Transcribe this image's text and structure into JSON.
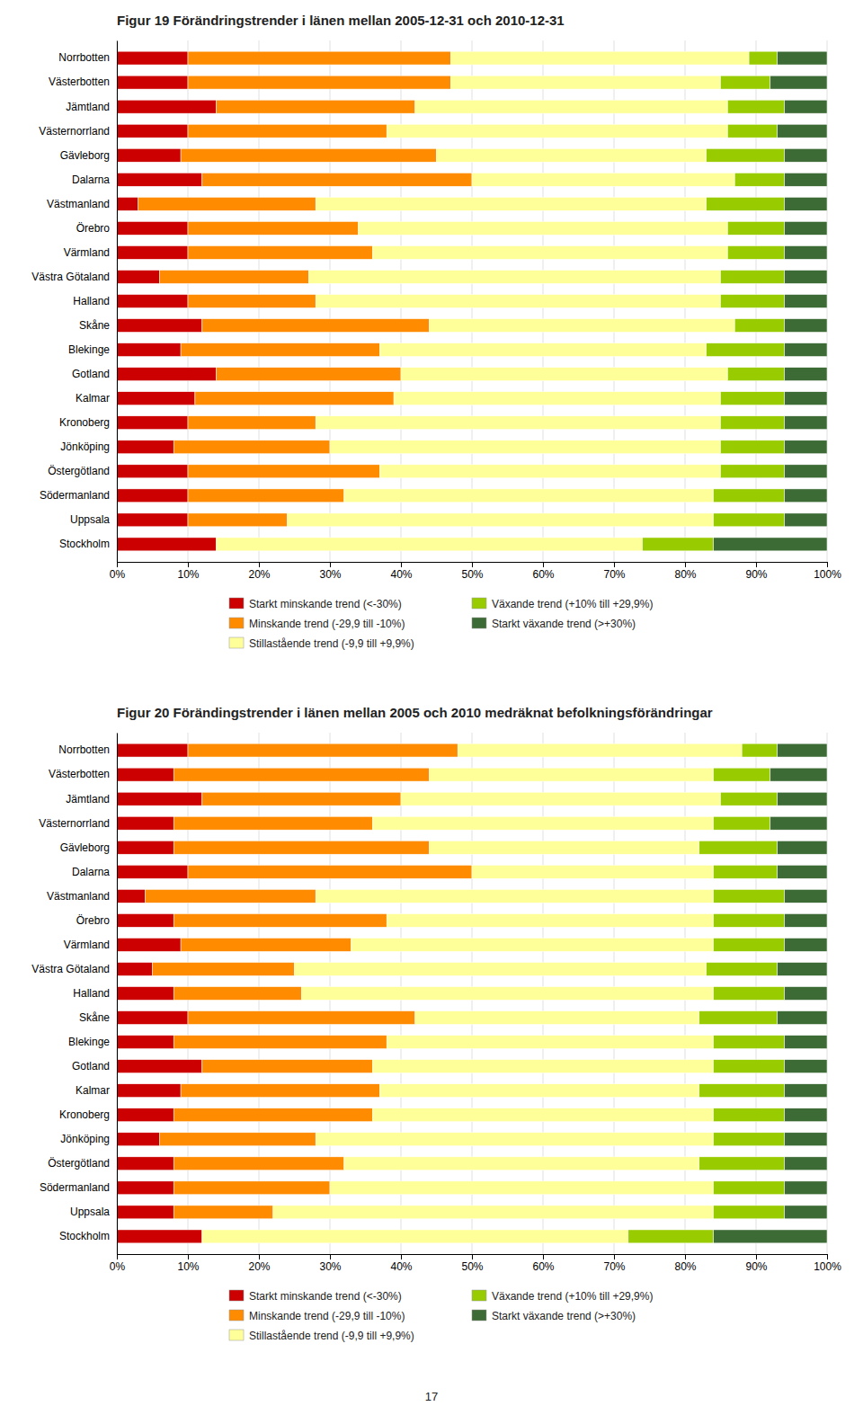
{
  "chart_data": [
    {
      "type": "bar",
      "title": "Figur 19 Förändringstrender i länen mellan 2005-12-31 och 2010-12-31",
      "orientation": "horizontal",
      "stacked": true,
      "grid": true,
      "legend": "bottom",
      "categories": [
        "Norrbotten",
        "Västerbotten",
        "Jämtland",
        "Västernorrland",
        "Gävleborg",
        "Dalarna",
        "Västmanland",
        "Örebro",
        "Värmland",
        "Västra Götaland",
        "Halland",
        "Skåne",
        "Blekinge",
        "Gotland",
        "Kalmar",
        "Kronoberg",
        "Jönköping",
        "Östergötland",
        "Södermanland",
        "Uppsala",
        "Stockholm"
      ],
      "series": [
        {
          "name": "Starkt minskande trend (<-30%)",
          "color": "#cc0000",
          "values": [
            10,
            10,
            14,
            10,
            9,
            12,
            3,
            10,
            10,
            6,
            10,
            12,
            9,
            14,
            11,
            10,
            8,
            10,
            10,
            10,
            14
          ]
        },
        {
          "name": "Minskande trend (-29,9 till -10%)",
          "color": "#ff8c00",
          "values": [
            37,
            37,
            28,
            28,
            36,
            38,
            25,
            24,
            26,
            21,
            18,
            32,
            28,
            26,
            28,
            18,
            22,
            27,
            22,
            14,
            0
          ]
        },
        {
          "name": "Stillastående trend (-9,9 till +9,9%)",
          "color": "#ffff99",
          "values": [
            42,
            38,
            44,
            48,
            38,
            37,
            55,
            52,
            50,
            58,
            57,
            43,
            46,
            46,
            46,
            57,
            55,
            48,
            52,
            60,
            60
          ]
        },
        {
          "name": "Växande trend (+10% till +29,9%)",
          "color": "#99cc00",
          "values": [
            4,
            7,
            8,
            7,
            11,
            7,
            11,
            8,
            8,
            9,
            9,
            7,
            11,
            8,
            9,
            9,
            9,
            9,
            10,
            10,
            10
          ]
        },
        {
          "name": "Starkt växande trend (>+30%)",
          "color": "#3d6b35",
          "values": [
            7,
            8,
            6,
            7,
            6,
            6,
            6,
            6,
            6,
            6,
            6,
            6,
            6,
            6,
            6,
            6,
            6,
            6,
            6,
            6,
            16
          ]
        }
      ],
      "xlim": [
        0,
        100
      ],
      "xticks": [
        {
          "value": 0,
          "label": "0%"
        },
        {
          "value": 10,
          "label": "10%"
        },
        {
          "value": 20,
          "label": "20%"
        },
        {
          "value": 30,
          "label": "30%"
        },
        {
          "value": 40,
          "label": "40%"
        },
        {
          "value": 50,
          "label": "50%"
        },
        {
          "value": 60,
          "label": "60%"
        },
        {
          "value": 70,
          "label": "70%"
        },
        {
          "value": 80,
          "label": "80%"
        },
        {
          "value": 90,
          "label": "90%"
        },
        {
          "value": 100,
          "label": "100%"
        }
      ]
    },
    {
      "type": "bar",
      "title": "Figur 20 Förändingstrender i länen mellan 2005 och 2010 medräknat befolkningsförändringar",
      "orientation": "horizontal",
      "stacked": true,
      "grid": true,
      "legend": "bottom",
      "categories": [
        "Norrbotten",
        "Västerbotten",
        "Jämtland",
        "Västernorrland",
        "Gävleborg",
        "Dalarna",
        "Västmanland",
        "Örebro",
        "Värmland",
        "Västra Götaland",
        "Halland",
        "Skåne",
        "Blekinge",
        "Gotland",
        "Kalmar",
        "Kronoberg",
        "Jönköping",
        "Östergötland",
        "Södermanland",
        "Uppsala",
        "Stockholm"
      ],
      "series": [
        {
          "name": "Starkt minskande trend (<-30%)",
          "color": "#cc0000",
          "values": [
            10,
            8,
            12,
            8,
            8,
            10,
            4,
            8,
            9,
            5,
            8,
            10,
            8,
            12,
            9,
            8,
            6,
            8,
            8,
            8,
            12
          ]
        },
        {
          "name": "Minskande trend (-29,9 till -10%)",
          "color": "#ff8c00",
          "values": [
            38,
            36,
            28,
            28,
            36,
            40,
            24,
            30,
            24,
            20,
            18,
            32,
            30,
            24,
            28,
            28,
            22,
            24,
            22,
            14,
            0
          ]
        },
        {
          "name": "Stillastående trend (-9,9 till +9,9%)",
          "color": "#ffff99",
          "values": [
            40,
            40,
            45,
            48,
            38,
            34,
            56,
            46,
            51,
            58,
            58,
            40,
            46,
            48,
            45,
            48,
            56,
            50,
            54,
            62,
            60
          ]
        },
        {
          "name": "Växande trend (+10% till +29,9%)",
          "color": "#99cc00",
          "values": [
            5,
            8,
            8,
            8,
            11,
            9,
            10,
            10,
            10,
            10,
            10,
            11,
            10,
            10,
            12,
            10,
            10,
            12,
            10,
            10,
            12
          ]
        },
        {
          "name": "Starkt växande trend (>+30%)",
          "color": "#3d6b35",
          "values": [
            7,
            8,
            7,
            8,
            7,
            7,
            6,
            6,
            6,
            7,
            6,
            7,
            6,
            6,
            6,
            6,
            6,
            6,
            6,
            6,
            16
          ]
        }
      ],
      "xlim": [
        0,
        100
      ],
      "xticks": [
        {
          "value": 0,
          "label": "0%"
        },
        {
          "value": 10,
          "label": "10%"
        },
        {
          "value": 20,
          "label": "20%"
        },
        {
          "value": 30,
          "label": "30%"
        },
        {
          "value": 40,
          "label": "40%"
        },
        {
          "value": 50,
          "label": "50%"
        },
        {
          "value": 60,
          "label": "60%"
        },
        {
          "value": 70,
          "label": "70%"
        },
        {
          "value": 80,
          "label": "80%"
        },
        {
          "value": 90,
          "label": "90%"
        },
        {
          "value": 100,
          "label": "100%"
        }
      ],
      "annotation": "17"
    }
  ]
}
